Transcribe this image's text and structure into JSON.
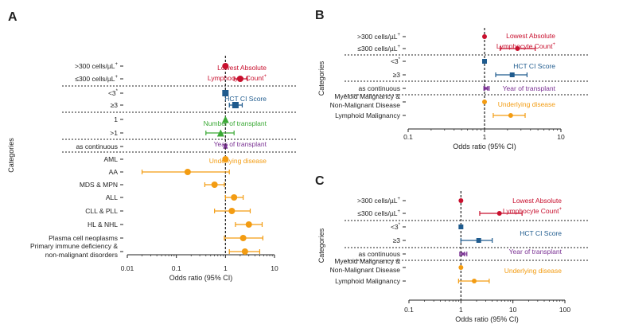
{
  "colors": {
    "lalc": "#c8102e",
    "hct": "#1f5b8e",
    "transplant_num": "#3aa935",
    "year": "#7b3294",
    "disease": "#f39c12",
    "axis": "#222222",
    "dotted": "#222222"
  },
  "chart_data": [
    {
      "type": "forest",
      "panel_label": "A",
      "xlabel": "Odds ratio (95% CI)",
      "ylabel": "Categories",
      "xscale": "log",
      "xlim": [
        0.01,
        10
      ],
      "xticks": [
        "0.01",
        "0.1",
        "1",
        "10"
      ],
      "reference_line": 1,
      "groups": [
        {
          "label": "Lowest Absolute Lymphocyte Count",
          "label_superscript": "+",
          "color_key": "lalc",
          "rows": [
            {
              "label": ">300 cells/µL",
              "label_superscript": "+",
              "or": 1.0,
              "ci": [
                1.0,
                1.0
              ],
              "marker": "circle",
              "reference": true
            },
            {
              "label": "≤300 cells/µL",
              "label_superscript": "+",
              "or": 2.0,
              "ci": [
                1.5,
                2.8
              ],
              "marker": "circle"
            }
          ]
        },
        {
          "label": "HCT CI Score",
          "color_key": "hct",
          "rows": [
            {
              "label": "<3",
              "label_superscript": "*",
              "or": 1.0,
              "ci": [
                1.0,
                1.0
              ],
              "marker": "square",
              "reference": true
            },
            {
              "label": "≥3",
              "or": 1.6,
              "ci": [
                1.2,
                2.2
              ],
              "marker": "square"
            }
          ]
        },
        {
          "label": "Number of transplant",
          "color_key": "transplant_num",
          "rows": [
            {
              "label": "1",
              "or": 1.0,
              "ci": [
                1.0,
                1.0
              ],
              "marker": "triangle",
              "reference": true
            },
            {
              "label": ">1",
              "or": 0.8,
              "ci": [
                0.4,
                1.5
              ],
              "marker": "triangle"
            }
          ]
        },
        {
          "label": "Year of transplant",
          "color_key": "year",
          "rows": [
            {
              "label": "as continuous",
              "or": 1.0,
              "ci": [
                0.95,
                1.06
              ],
              "marker": "x"
            }
          ]
        },
        {
          "label": "Underlying disease",
          "color_key": "disease",
          "rows": [
            {
              "label": "AML",
              "or": 1.0,
              "ci": [
                1.0,
                1.0
              ],
              "marker": "circle",
              "reference": true
            },
            {
              "label": "AA",
              "or": 0.17,
              "ci": [
                0.02,
                1.2
              ],
              "marker": "circle"
            },
            {
              "label": "MDS & MPN",
              "or": 0.6,
              "ci": [
                0.38,
                0.95
              ],
              "marker": "circle"
            },
            {
              "label": "ALL",
              "or": 1.5,
              "ci": [
                1.0,
                2.3
              ],
              "marker": "circle"
            },
            {
              "label": "CLL & PLL",
              "or": 1.35,
              "ci": [
                0.6,
                3.2
              ],
              "marker": "circle"
            },
            {
              "label": "HL & NHL",
              "or": 3.0,
              "ci": [
                1.6,
                5.6
              ],
              "marker": "circle"
            },
            {
              "label": "Plasma cell neoplasms",
              "or": 2.3,
              "ci": [
                0.95,
                5.8
              ],
              "marker": "circle"
            },
            {
              "label": "Primary immune deficiency & non-malignant disorders",
              "label_lines": [
                "Primary immune deficiency &",
                "non-malignant disorders"
              ],
              "or": 2.5,
              "ci": [
                1.2,
                5.0
              ],
              "marker": "circle"
            }
          ]
        }
      ]
    },
    {
      "type": "forest",
      "panel_label": "B",
      "xlabel": "Odds ratio (95% CI)",
      "ylabel": "Categories",
      "xscale": "log",
      "xlim": [
        0.1,
        10
      ],
      "xticks": [
        "0.1",
        "1",
        "10"
      ],
      "reference_line": 1,
      "groups": [
        {
          "label": "Lowest Absolute Lymphocyte Count",
          "label_superscript": "+",
          "color_key": "lalc",
          "rows": [
            {
              "label": ">300 cells/µL",
              "label_superscript": "+",
              "or": 1.0,
              "ci": [
                1.0,
                1.0
              ],
              "marker": "circle",
              "reference": true
            },
            {
              "label": "≤300 cells/µL",
              "label_superscript": "+",
              "or": 2.7,
              "ci": [
                1.6,
                4.6
              ],
              "marker": "circle"
            }
          ]
        },
        {
          "label": "HCT CI Score",
          "color_key": "hct",
          "rows": [
            {
              "label": "<3",
              "label_superscript": "*",
              "or": 1.0,
              "ci": [
                1.0,
                1.0
              ],
              "marker": "square",
              "reference": true
            },
            {
              "label": "≥3",
              "or": 2.3,
              "ci": [
                1.4,
                3.6
              ],
              "marker": "square"
            }
          ]
        },
        {
          "label": "Year of transplant",
          "color_key": "year",
          "rows": [
            {
              "label": "as continuous",
              "or": 1.05,
              "ci": [
                0.98,
                1.15
              ],
              "marker": "x"
            }
          ]
        },
        {
          "label": "Underlying disease",
          "color_key": "disease",
          "rows": [
            {
              "label": "Myeloid Malignancy & Non-Malignant Disease",
              "label_lines": [
                "Myeloid Malignancy &",
                "Non-Malignant Disease"
              ],
              "or": 1.0,
              "ci": [
                1.0,
                1.0
              ],
              "marker": "circle",
              "reference": true
            },
            {
              "label": "Lymphoid Malignancy",
              "or": 2.2,
              "ci": [
                1.3,
                3.4
              ],
              "marker": "circle"
            }
          ]
        }
      ]
    },
    {
      "type": "forest",
      "panel_label": "C",
      "xlabel": "Odds ratio (95% CI)",
      "ylabel": "Categories",
      "xscale": "log",
      "xlim": [
        0.1,
        100
      ],
      "xticks": [
        "0.1",
        "1",
        "10",
        "100"
      ],
      "reference_line": 1,
      "groups": [
        {
          "label": "Lowest Absolute Lymphocyte Count",
          "label_superscript": "+",
          "color_key": "lalc",
          "rows": [
            {
              "label": ">300 cells/µL",
              "label_superscript": "+",
              "or": 1.0,
              "ci": [
                1.0,
                1.0
              ],
              "marker": "circle",
              "reference": true
            },
            {
              "label": "≤300 cells/µL",
              "label_superscript": "+",
              "or": 5.5,
              "ci": [
                2.3,
                15.0
              ],
              "marker": "circle"
            }
          ]
        },
        {
          "label": "HCT CI Score",
          "color_key": "hct",
          "rows": [
            {
              "label": "<3",
              "label_superscript": "*",
              "or": 1.0,
              "ci": [
                1.0,
                1.0
              ],
              "marker": "square",
              "reference": true
            },
            {
              "label": "≥3",
              "or": 2.2,
              "ci": [
                1.0,
                4.0
              ],
              "marker": "square"
            }
          ]
        },
        {
          "label": "Year of transplant",
          "color_key": "year",
          "rows": [
            {
              "label": "as continuous",
              "or": 1.1,
              "ci": [
                0.95,
                1.3
              ],
              "marker": "x"
            }
          ]
        },
        {
          "label": "Underlying disease",
          "color_key": "disease",
          "rows": [
            {
              "label": "Myeloid Malignancy & Non-Malignant Disease",
              "label_lines": [
                "Myeloid Malignancy &",
                "Non-Malignant Disease"
              ],
              "or": 1.0,
              "ci": [
                1.0,
                1.0
              ],
              "marker": "circle",
              "reference": true
            },
            {
              "label": "Lymphoid Malignancy",
              "or": 1.8,
              "ci": [
                0.9,
                3.5
              ],
              "marker": "circle"
            }
          ]
        }
      ]
    }
  ]
}
